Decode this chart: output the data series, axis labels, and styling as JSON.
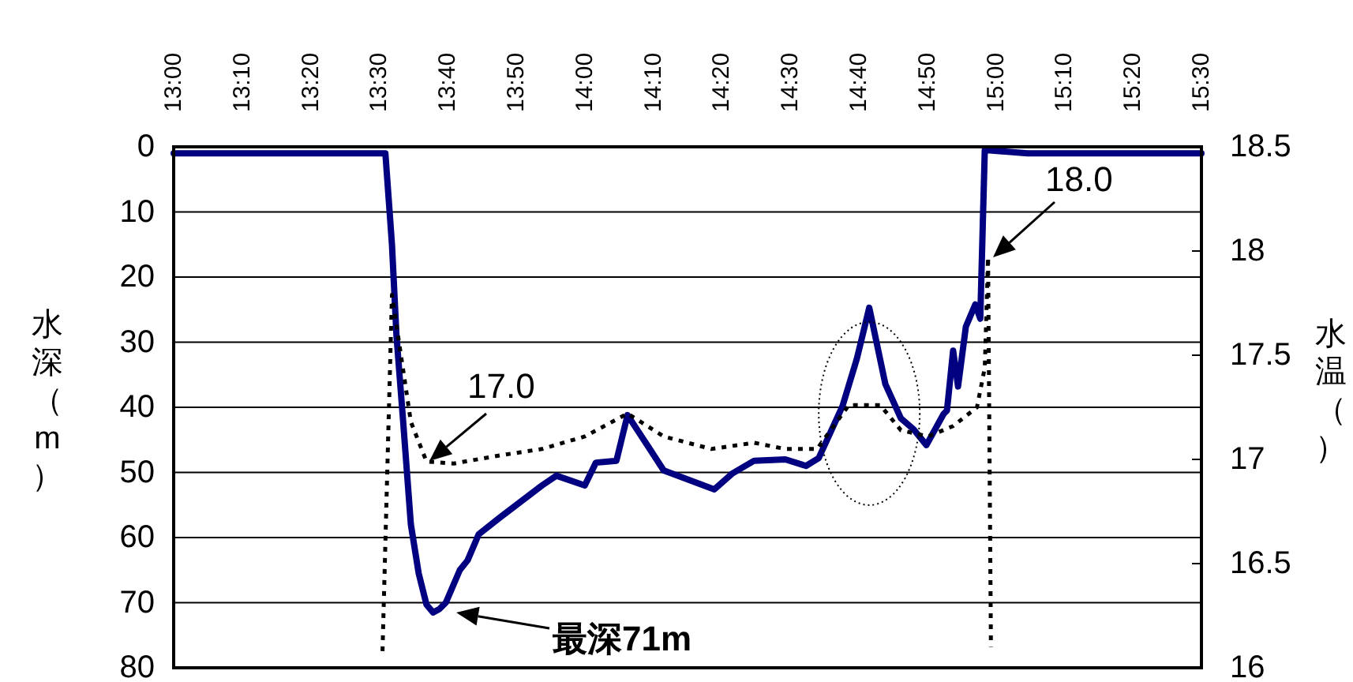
{
  "chart_data": {
    "type": "line",
    "ylabel": "水深（m）",
    "y2label": "水温（）",
    "xlim": [
      13,
      15.5
    ],
    "xticks": [
      {
        "value": 13,
        "label": "13:00"
      },
      {
        "value": 13.1667,
        "label": "13:10"
      },
      {
        "value": 13.3333,
        "label": "13:20"
      },
      {
        "value": 13.5,
        "label": "13:30"
      },
      {
        "value": 13.6667,
        "label": "13:40"
      },
      {
        "value": 13.8333,
        "label": "13:50"
      },
      {
        "value": 14,
        "label": "14:00"
      },
      {
        "value": 14.1667,
        "label": "14:10"
      },
      {
        "value": 14.3333,
        "label": "14:20"
      },
      {
        "value": 14.5,
        "label": "14:30"
      },
      {
        "value": 14.6667,
        "label": "14:40"
      },
      {
        "value": 14.8333,
        "label": "14:50"
      },
      {
        "value": 15,
        "label": "15:00"
      },
      {
        "value": 15.1667,
        "label": "15:10"
      },
      {
        "value": 15.3333,
        "label": "15:20"
      },
      {
        "value": 15.5,
        "label": "15:30"
      }
    ],
    "ylim": [
      80,
      0
    ],
    "yticks": [
      0,
      10,
      20,
      30,
      40,
      50,
      60,
      70,
      80
    ],
    "y2lim": [
      16,
      18.5
    ],
    "y2ticks": [
      16,
      16.5,
      17,
      17.5,
      18,
      18.5
    ],
    "grid": "y",
    "marker": "none",
    "series": [
      {
        "color": "#000080",
        "line_style": "solid",
        "x": [
          13.0,
          13.515,
          13.531,
          13.542,
          13.558,
          13.577,
          13.596,
          13.615,
          13.631,
          13.646,
          13.662,
          13.696,
          13.715,
          13.742,
          13.792,
          13.896,
          13.931,
          14.0,
          14.027,
          14.077,
          14.104,
          14.154,
          14.192,
          14.315,
          14.358,
          14.412,
          14.488,
          14.538,
          14.569,
          14.627,
          14.662,
          14.692,
          14.731,
          14.769,
          14.8,
          14.831,
          14.873,
          14.881,
          14.896,
          14.908,
          14.927,
          14.95,
          14.962,
          14.973,
          15.077,
          15.5
        ],
        "values": [
          1,
          1,
          15,
          29,
          42,
          58,
          65.5,
          70.3,
          71.5,
          71,
          70,
          65,
          63.5,
          59.5,
          57,
          52,
          50.5,
          52,
          48.5,
          48.2,
          41.2,
          46,
          49.7,
          52.6,
          50.2,
          48.2,
          48,
          49,
          47.8,
          39.8,
          32.5,
          24.7,
          36.4,
          41.7,
          43.4,
          45.8,
          41,
          40.5,
          31.3,
          36.8,
          27.6,
          24.2,
          26.4,
          0.5,
          1,
          1
        ]
      },
      {
        "color": "#000000",
        "axis": "y2",
        "line_style": "dotted",
        "x": [
          13.508,
          13.531,
          13.577,
          13.615,
          13.681,
          13.796,
          13.896,
          14.0,
          14.104,
          14.192,
          14.308,
          14.412,
          14.488,
          14.565,
          14.642,
          14.719,
          14.769,
          14.835,
          14.896,
          14.954,
          14.973,
          14.981,
          14.988
        ],
        "values": [
          16.08,
          17.79,
          17.18,
          16.99,
          16.98,
          17.02,
          17.05,
          17.11,
          17.22,
          17.11,
          17.05,
          17.08,
          17.05,
          17.05,
          17.26,
          17.26,
          17.14,
          17.11,
          17.16,
          17.25,
          17.44,
          17.97,
          16.1
        ]
      }
    ],
    "annotations": [
      "17.0",
      "18.0",
      "最深71m"
    ]
  }
}
